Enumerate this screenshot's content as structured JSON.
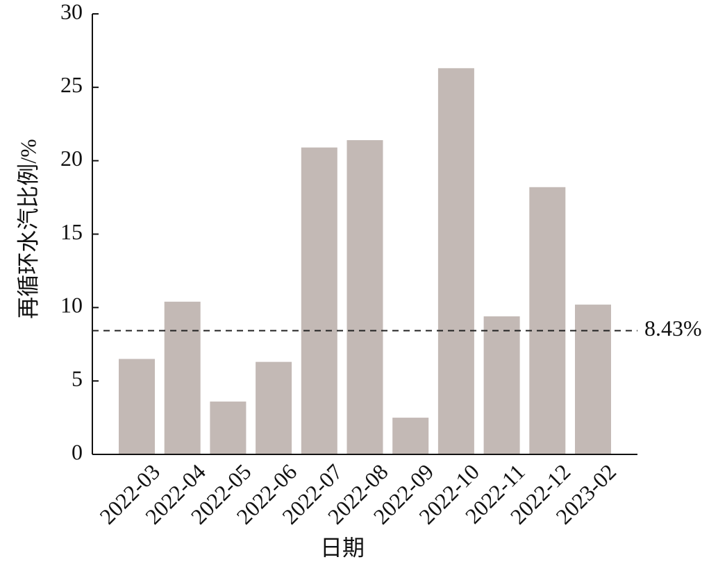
{
  "chart_data": {
    "type": "bar",
    "categories": [
      "2022-03",
      "2022-04",
      "2022-05",
      "2022-06",
      "2022-07",
      "2022-08",
      "2022-09",
      "2022-10",
      "2022-11",
      "2022-12",
      "2023-02"
    ],
    "values": [
      6.5,
      10.4,
      3.6,
      6.3,
      20.9,
      21.4,
      2.5,
      26.3,
      9.4,
      18.2,
      10.2
    ],
    "color": "#c3b9b5",
    "ylim": [
      0,
      30
    ],
    "yticks": [
      0,
      5,
      10,
      15,
      20,
      25,
      30
    ],
    "y_label": "再循环水汽比例/%",
    "x_label": "日期",
    "reference_line": {
      "value": 8.43,
      "label": "8.43%"
    }
  }
}
